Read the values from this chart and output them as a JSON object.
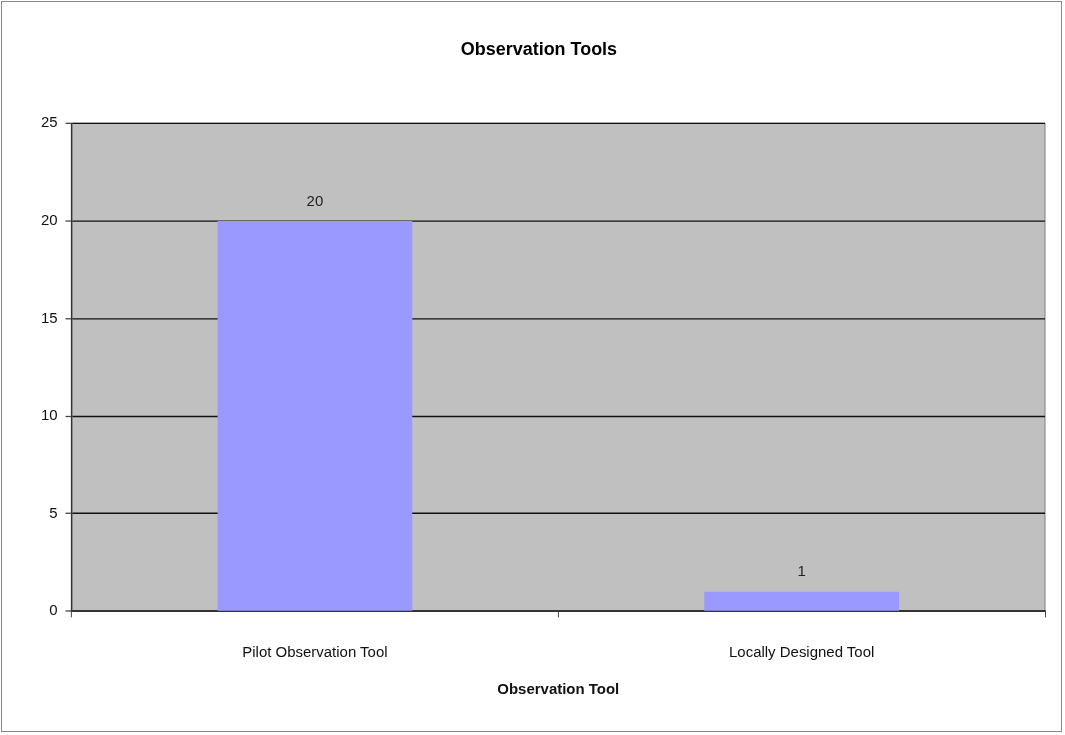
{
  "chart_data": {
    "type": "bar",
    "title": "Observation Tools",
    "xlabel": "Observation Tool",
    "categories": [
      "Pilot Observation Tool",
      "Locally Designed Tool"
    ],
    "values": [
      20,
      1
    ],
    "color": "#9999ff",
    "ylim": [
      0,
      25
    ],
    "yticks": [
      0,
      5,
      10,
      15,
      20,
      25
    ],
    "grid": "y",
    "data_labels": true,
    "legend": false
  }
}
